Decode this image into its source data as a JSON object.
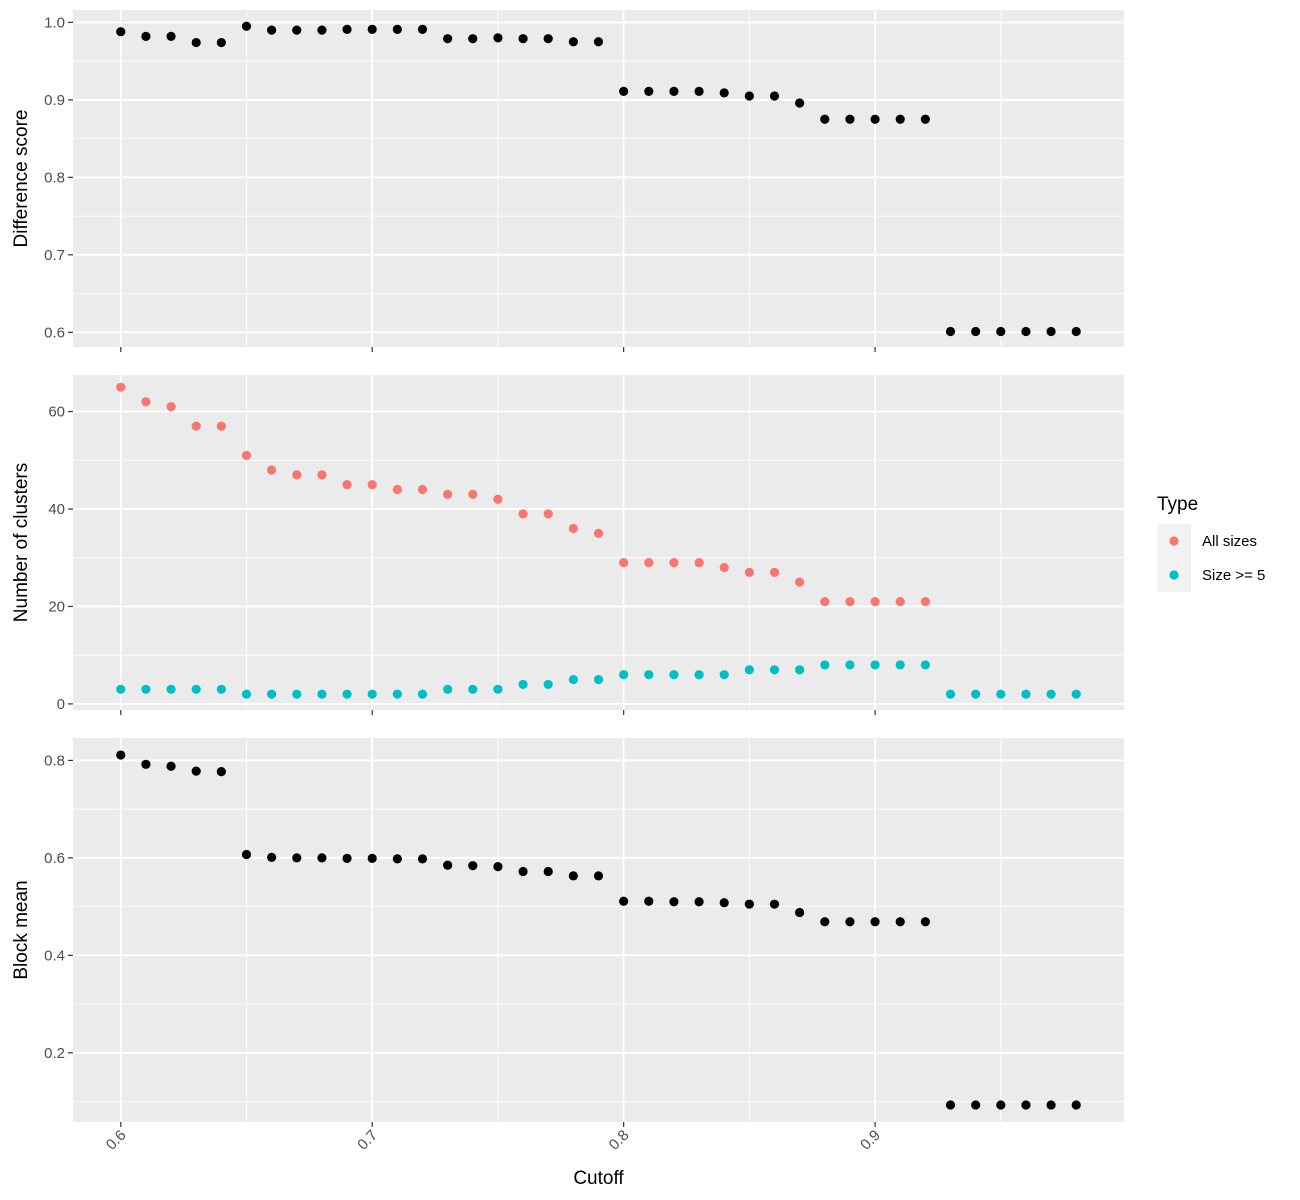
{
  "chart_data": {
    "type": "scatter",
    "x_label": "Cutoff",
    "x_range": [
      0.581,
      0.999
    ],
    "x_ticks": [
      0.6,
      0.7,
      0.8,
      0.9
    ],
    "x_tick_labels": [
      "0.6",
      "0.7",
      "0.8",
      "0.9"
    ],
    "x": [
      0.6,
      0.61,
      0.62,
      0.63,
      0.64,
      0.65,
      0.66,
      0.67,
      0.68,
      0.69,
      0.7,
      0.71,
      0.72,
      0.73,
      0.74,
      0.75,
      0.76,
      0.77,
      0.78,
      0.79,
      0.8,
      0.81,
      0.82,
      0.83,
      0.84,
      0.85,
      0.86,
      0.87,
      0.88,
      0.89,
      0.9,
      0.91,
      0.92,
      0.93,
      0.94,
      0.95,
      0.96,
      0.97,
      0.98
    ],
    "panels": [
      {
        "id": "difference",
        "y_label": "Difference score",
        "y_range": [
          0.581,
          1.016
        ],
        "y_ticks": [
          0.6,
          0.7,
          0.8,
          0.9,
          1.0
        ],
        "y_tick_labels": [
          "0.6",
          "0.7",
          "0.8",
          "0.9",
          "1.0"
        ],
        "series": [
          {
            "color": "#000000",
            "values": [
              0.988,
              0.982,
              0.982,
              0.974,
              0.974,
              0.995,
              0.99,
              0.99,
              0.99,
              0.991,
              0.991,
              0.991,
              0.991,
              0.979,
              0.979,
              0.98,
              0.979,
              0.979,
              0.975,
              0.975,
              0.911,
              0.911,
              0.911,
              0.911,
              0.909,
              0.905,
              0.905,
              0.896,
              0.875,
              0.875,
              0.875,
              0.875,
              0.875,
              0.601,
              0.601,
              0.601,
              0.601,
              0.601,
              0.601
            ]
          }
        ]
      },
      {
        "id": "clusters",
        "y_label": "Number of clusters",
        "y_range": [
          -1.25,
          67.5
        ],
        "y_ticks": [
          0,
          20,
          40,
          60
        ],
        "y_tick_labels": [
          "0",
          "20",
          "40",
          "60"
        ],
        "series": [
          {
            "name": "All sizes",
            "color": "#F8766D",
            "values": [
              65,
              62,
              61,
              57,
              57,
              51,
              48,
              47,
              47,
              45,
              45,
              44,
              44,
              43,
              43,
              42,
              39,
              39,
              36,
              35,
              29,
              29,
              29,
              29,
              28,
              27,
              27,
              25,
              21,
              21,
              21,
              21,
              21,
              null,
              null,
              null,
              null,
              null,
              null
            ]
          },
          {
            "name": "Size >= 5",
            "color": "#00BFC4",
            "values": [
              3,
              3,
              3,
              3,
              3,
              2,
              2,
              2,
              2,
              2,
              2,
              2,
              2,
              3,
              3,
              3,
              4,
              4,
              5,
              5,
              6,
              6,
              6,
              6,
              6,
              7,
              7,
              7,
              8,
              8,
              8,
              8,
              8,
              2,
              2,
              2,
              2,
              2,
              2
            ]
          }
        ]
      },
      {
        "id": "block",
        "y_label": "Block mean",
        "y_range": [
          0.058,
          0.846
        ],
        "y_ticks": [
          0.2,
          0.4,
          0.6,
          0.8
        ],
        "y_tick_labels": [
          "0.2",
          "0.4",
          "0.6",
          "0.8"
        ],
        "series": [
          {
            "color": "#000000",
            "values": [
              0.811,
              0.792,
              0.788,
              0.778,
              0.777,
              0.607,
              0.601,
              0.6,
              0.6,
              0.599,
              0.599,
              0.598,
              0.598,
              0.585,
              0.584,
              0.582,
              0.572,
              0.572,
              0.563,
              0.563,
              0.511,
              0.511,
              0.51,
              0.51,
              0.508,
              0.505,
              0.505,
              0.488,
              0.469,
              0.469,
              0.469,
              0.469,
              0.469,
              0.093,
              0.093,
              0.093,
              0.093,
              0.093,
              0.093
            ]
          }
        ]
      }
    ],
    "legend": {
      "title": "Type",
      "position": "right",
      "entries": [
        {
          "label": "All sizes",
          "color": "#F8766D"
        },
        {
          "label": "Size >= 5",
          "color": "#00BFC4"
        }
      ]
    },
    "grid": true,
    "panel_background": "#EBEBEB",
    "gridline_color": "#FFFFFF"
  }
}
